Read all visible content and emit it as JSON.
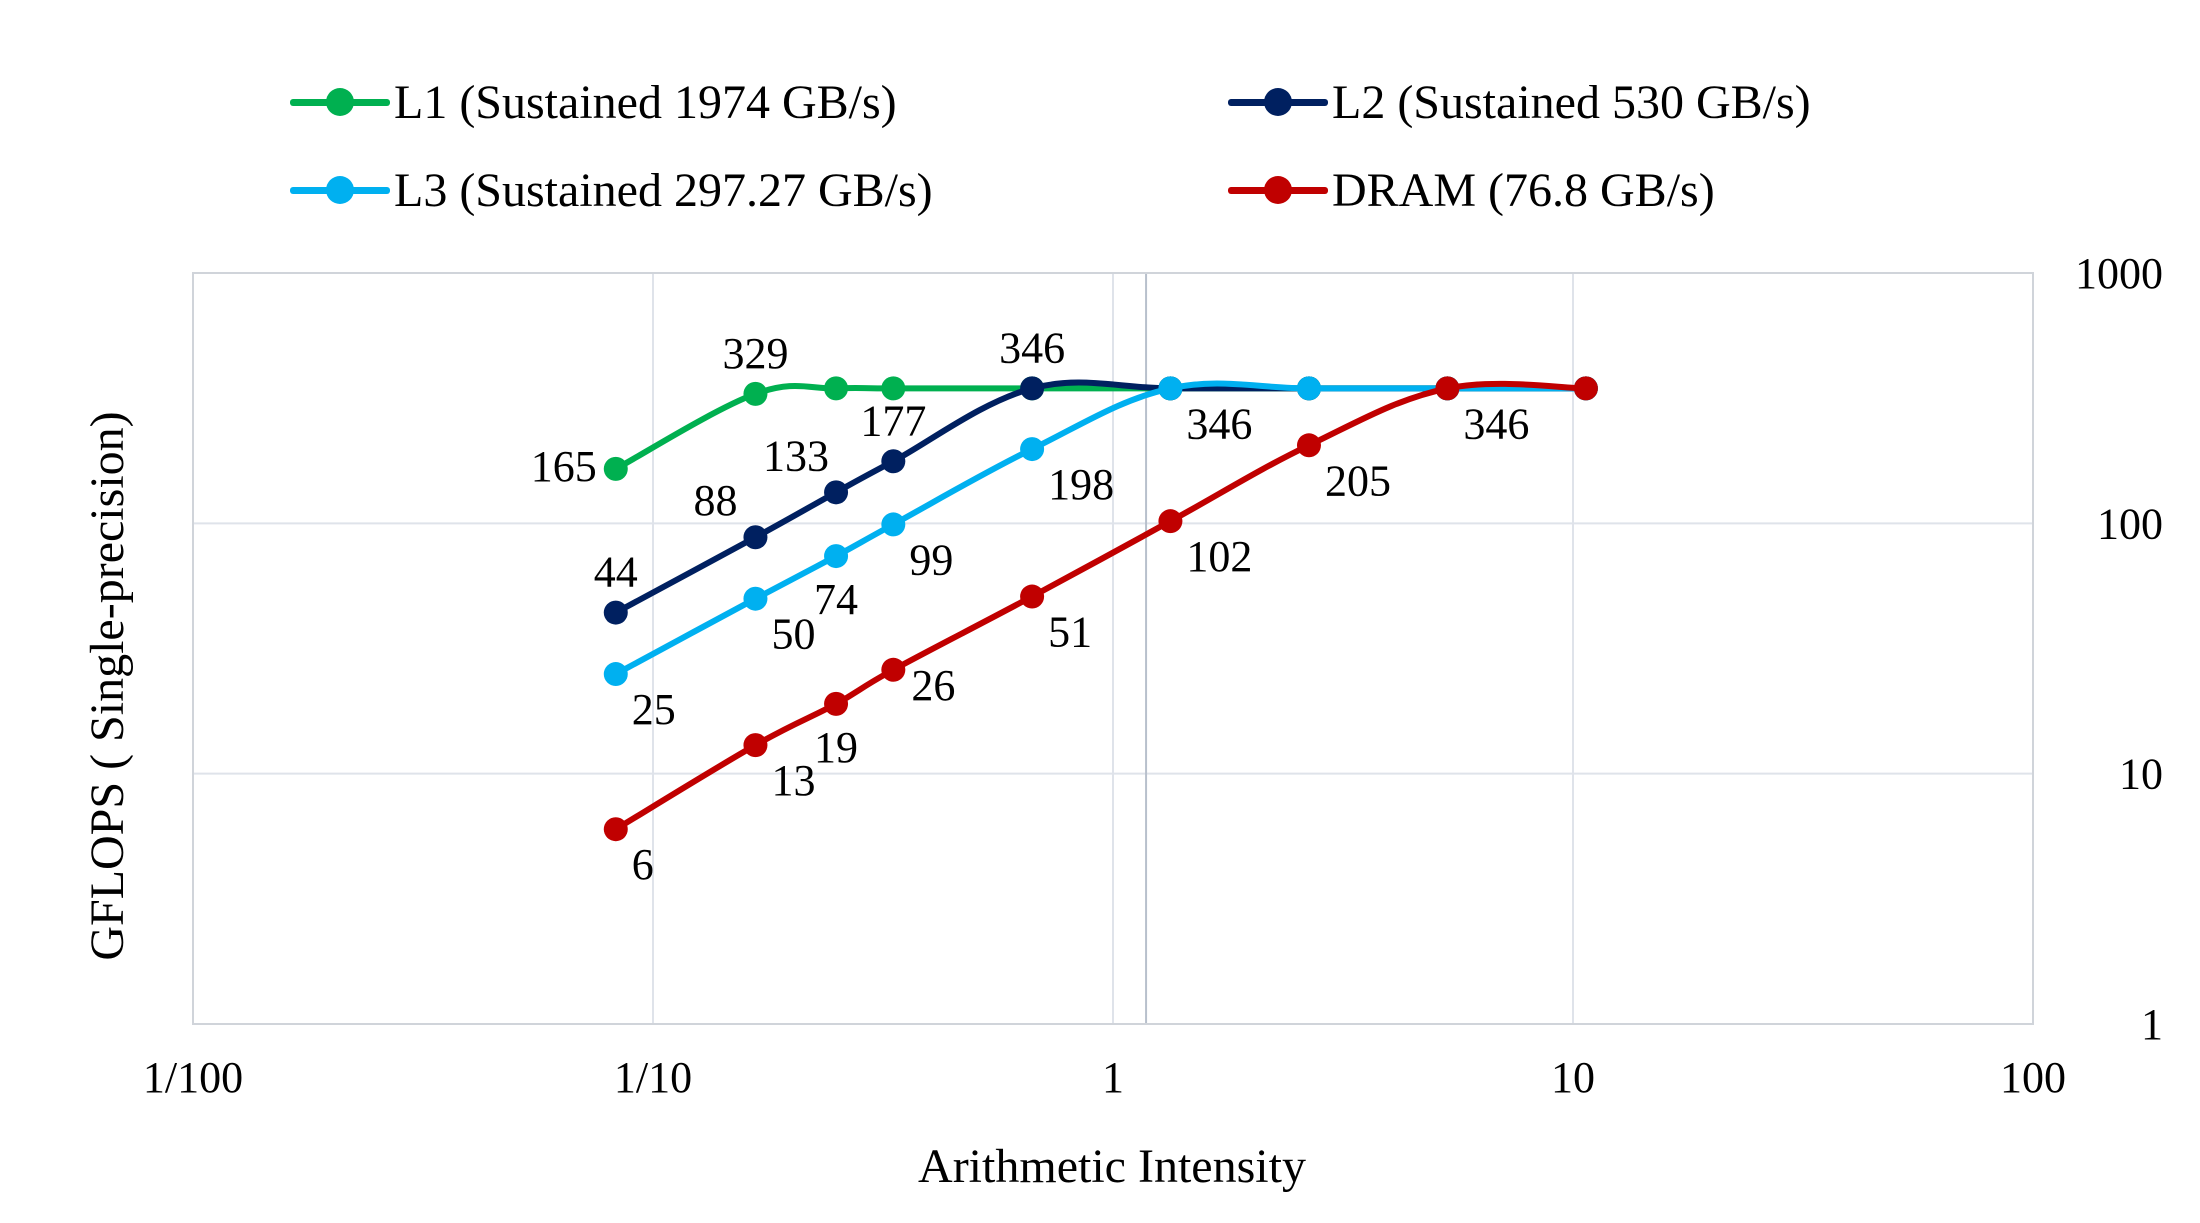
{
  "chart_data": {
    "type": "line",
    "xlabel": "Arithmetic Intensity",
    "ylabel": "GFLOPS ( Single-precision)",
    "x_scale": "log",
    "y_scale": "log",
    "xlim": [
      0.01,
      100
    ],
    "ylim": [
      1,
      1000
    ],
    "x_ticks": [
      {
        "value": 0.01,
        "label": "1/100"
      },
      {
        "value": 0.1,
        "label": "1/10"
      },
      {
        "value": 1,
        "label": "1"
      },
      {
        "value": 10,
        "label": "10"
      },
      {
        "value": 100,
        "label": "100"
      }
    ],
    "y_ticks": [
      {
        "value": 1,
        "label": "1"
      },
      {
        "value": 10,
        "label": "10"
      },
      {
        "value": 100,
        "label": "100"
      },
      {
        "value": 1000,
        "label": "1000"
      }
    ],
    "y_axis_side": "right",
    "grid": true,
    "legend_position": "top",
    "series": [
      {
        "name": "L1 (Sustained 1974 GB/s)",
        "color": "#00b050",
        "points": [
          {
            "x": 0.083,
            "y": 165,
            "label": "165",
            "label_pos": "left"
          },
          {
            "x": 0.167,
            "y": 329,
            "label": "329",
            "label_pos": "above"
          },
          {
            "x": 0.25,
            "y": 346
          },
          {
            "x": 0.333,
            "y": 346
          },
          {
            "x": 0.667,
            "y": 346
          },
          {
            "x": 1.333,
            "y": 346
          },
          {
            "x": 2.667,
            "y": 346
          },
          {
            "x": 5.333,
            "y": 346
          },
          {
            "x": 10.667,
            "y": 346
          }
        ]
      },
      {
        "name": "L2 (Sustained 530 GB/s)",
        "color": "#002060",
        "points": [
          {
            "x": 0.083,
            "y": 44,
            "label": "44",
            "label_pos": "above"
          },
          {
            "x": 0.167,
            "y": 88,
            "label": "88",
            "label_pos": "above-left"
          },
          {
            "x": 0.25,
            "y": 133,
            "label": "133",
            "label_pos": "above-left"
          },
          {
            "x": 0.333,
            "y": 177,
            "label": "177",
            "label_pos": "above"
          },
          {
            "x": 0.667,
            "y": 346,
            "label": "346",
            "label_pos": "above"
          },
          {
            "x": 1.333,
            "y": 346
          },
          {
            "x": 2.667,
            "y": 346
          },
          {
            "x": 5.333,
            "y": 346
          },
          {
            "x": 10.667,
            "y": 346
          }
        ]
      },
      {
        "name": "L3 (Sustained 297.27 GB/s)",
        "color": "#00b0f0",
        "points": [
          {
            "x": 0.083,
            "y": 25,
            "label": "25",
            "label_pos": "below-right"
          },
          {
            "x": 0.167,
            "y": 50,
            "label": "50",
            "label_pos": "below-right"
          },
          {
            "x": 0.25,
            "y": 74,
            "label": "74",
            "label_pos": "below"
          },
          {
            "x": 0.333,
            "y": 99,
            "label": "99",
            "label_pos": "below-right"
          },
          {
            "x": 0.667,
            "y": 198,
            "label": "198",
            "label_pos": "below-right"
          },
          {
            "x": 1.333,
            "y": 346,
            "label": "346",
            "label_pos": "below-right"
          },
          {
            "x": 2.667,
            "y": 346
          },
          {
            "x": 5.333,
            "y": 346
          },
          {
            "x": 10.667,
            "y": 346
          }
        ]
      },
      {
        "name": "DRAM (76.8 GB/s)",
        "color": "#c00000",
        "points": [
          {
            "x": 0.083,
            "y": 6,
            "label": "6",
            "label_pos": "below-right"
          },
          {
            "x": 0.167,
            "y": 13,
            "label": "13",
            "label_pos": "below-right"
          },
          {
            "x": 0.25,
            "y": 19,
            "label": "19",
            "label_pos": "below"
          },
          {
            "x": 0.333,
            "y": 26,
            "label": "26",
            "label_pos": "right"
          },
          {
            "x": 0.667,
            "y": 51,
            "label": "51",
            "label_pos": "below-right"
          },
          {
            "x": 1.333,
            "y": 102,
            "label": "102",
            "label_pos": "below-right"
          },
          {
            "x": 2.667,
            "y": 205,
            "label": "205",
            "label_pos": "below-right"
          },
          {
            "x": 5.333,
            "y": 346,
            "label": "346",
            "label_pos": "below-right"
          },
          {
            "x": 10.667,
            "y": 346
          }
        ]
      }
    ]
  }
}
